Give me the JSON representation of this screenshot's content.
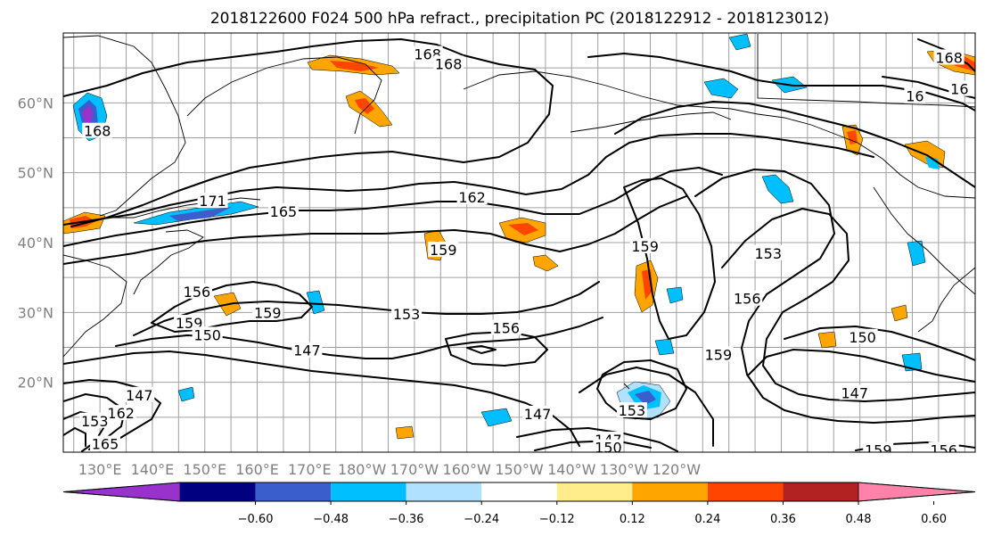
{
  "title": "2018122600 F024 500 hPa refract., precipitation PC (2018122912 - 2018123012)",
  "map": {
    "lat_labels": [
      "60°N",
      "50°N",
      "40°N",
      "30°N",
      "20°N"
    ],
    "lon_labels": [
      "130°E",
      "140°E",
      "150°E",
      "160°E",
      "170°E",
      "180°W",
      "170°W",
      "160°W",
      "150°W",
      "140°W",
      "130°W",
      "120°W"
    ],
    "lon_range": [
      123,
      297
    ],
    "lat_range": [
      10,
      70
    ],
    "grid": true
  },
  "contours": {
    "levels": [
      "147",
      "150",
      "153",
      "156",
      "159",
      "162",
      "165",
      "168"
    ],
    "labels": [
      {
        "text": "168",
        "lon": 192.5,
        "lat": 67
      },
      {
        "text": "168",
        "lon": 196.5,
        "lat": 65.6
      },
      {
        "text": "168",
        "lon": 129.5,
        "lat": 56
      },
      {
        "text": "168",
        "lon": 292,
        "lat": 66.5
      },
      {
        "text": "16",
        "lon": 285.5,
        "lat": 61
      },
      {
        "text": "16",
        "lon": 294,
        "lat": 62
      },
      {
        "text": "162",
        "lon": 201,
        "lat": 46.5
      },
      {
        "text": "165",
        "lon": 165,
        "lat": 44.5
      },
      {
        "text": "171",
        "lon": 151.5,
        "lat": 46
      },
      {
        "text": "159",
        "lon": 195.5,
        "lat": 39
      },
      {
        "text": "159",
        "lon": 234,
        "lat": 39.5
      },
      {
        "text": "153",
        "lon": 257.5,
        "lat": 38.5
      },
      {
        "text": "156",
        "lon": 253.5,
        "lat": 32
      },
      {
        "text": "156",
        "lon": 148.5,
        "lat": 33
      },
      {
        "text": "159",
        "lon": 162,
        "lat": 30
      },
      {
        "text": "159",
        "lon": 147,
        "lat": 28.5
      },
      {
        "text": "150",
        "lon": 150.5,
        "lat": 26.8
      },
      {
        "text": "153",
        "lon": 188.5,
        "lat": 29.8
      },
      {
        "text": "156",
        "lon": 207.5,
        "lat": 27.8
      },
      {
        "text": "147",
        "lon": 169.5,
        "lat": 24.6
      },
      {
        "text": "150",
        "lon": 275.5,
        "lat": 26.5
      },
      {
        "text": "159",
        "lon": 248,
        "lat": 24
      },
      {
        "text": "147",
        "lon": 274,
        "lat": 18.5
      },
      {
        "text": "147",
        "lon": 137.5,
        "lat": 18.2
      },
      {
        "text": "153",
        "lon": 231.5,
        "lat": 16
      },
      {
        "text": "147",
        "lon": 213.5,
        "lat": 15.5
      },
      {
        "text": "147",
        "lon": 227,
        "lat": 11.8
      },
      {
        "text": "150",
        "lon": 227,
        "lat": 10.7
      },
      {
        "text": "159",
        "lon": 278.5,
        "lat": 10.3
      },
      {
        "text": "156",
        "lon": 291,
        "lat": 10.3
      },
      {
        "text": "162",
        "lon": 134,
        "lat": 15.6
      },
      {
        "text": "153",
        "lon": 129,
        "lat": 14.5
      },
      {
        "text": "165",
        "lon": 131,
        "lat": 11.2
      }
    ]
  },
  "colorbar": {
    "tick_labels": [
      "−0.60",
      "−0.48",
      "−0.36",
      "−0.24",
      "−0.12",
      "0.12",
      "0.24",
      "0.36",
      "0.48",
      "0.60"
    ],
    "colors": [
      "#9932cc",
      "#000080",
      "#3a5fcd",
      "#00bfff",
      "#b0e2ff",
      "#ffffff",
      "#ffec8b",
      "#ffa500",
      "#ff4500",
      "#b22222",
      "#ff82ab"
    ]
  }
}
